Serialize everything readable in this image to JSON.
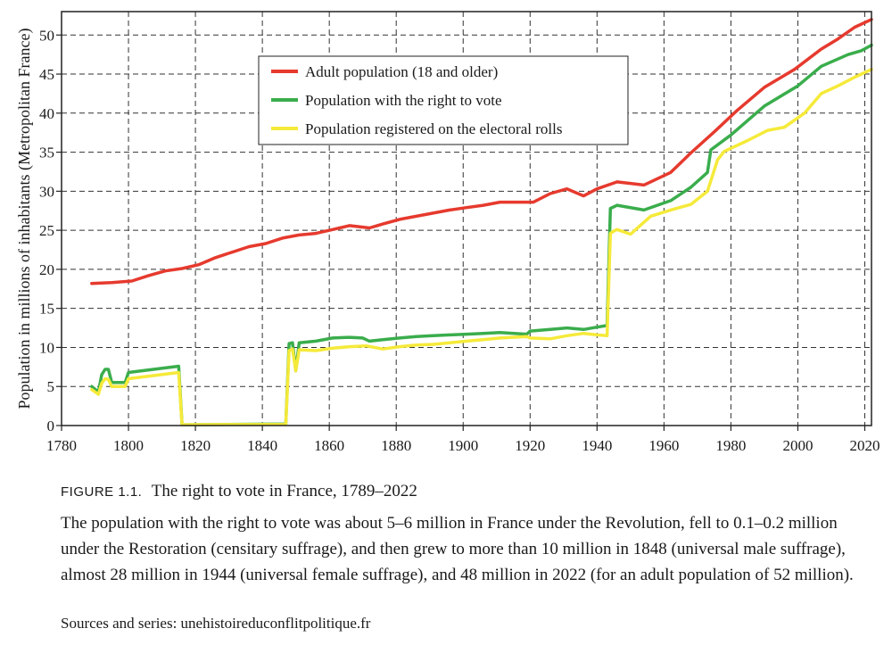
{
  "caption": {
    "figure_number": "FIGURE 1.1.",
    "figure_title": "The right to vote in France, 1789–2022",
    "description": "The population with the right to vote was about 5–6 million in France under the Revolution, fell to 0.1–0.2 million under the Restoration (censitary suffrage), and then grew to more than 10 million in 1848 (universal male suffrage), almost 28 million in 1944 (universal female suffrage), and 48 million in 2022 (for an adult population of 52 million).",
    "sources": "Sources and series: unehistoireduconflitpolitique.fr"
  },
  "chart_data": {
    "type": "line",
    "title": "",
    "xlabel": "",
    "ylabel": "Population in millions of inhabitants (Metropolitan France)",
    "xlim": [
      1780,
      2022
    ],
    "ylim": [
      0,
      53
    ],
    "x_ticks": [
      1780,
      1800,
      1820,
      1840,
      1860,
      1880,
      1900,
      1920,
      1940,
      1960,
      1980,
      2000,
      2020
    ],
    "y_ticks": [
      0,
      5,
      10,
      15,
      20,
      25,
      30,
      35,
      40,
      45,
      50
    ],
    "grid": true,
    "legend_position": "top-center",
    "series": [
      {
        "name": "Adult population (18 and older)",
        "color": "#e63a2e",
        "points": [
          [
            1789,
            18.2
          ],
          [
            1795,
            18.3
          ],
          [
            1801,
            18.5
          ],
          [
            1806,
            19.2
          ],
          [
            1811,
            19.8
          ],
          [
            1816,
            20.1
          ],
          [
            1821,
            20.6
          ],
          [
            1826,
            21.5
          ],
          [
            1831,
            22.2
          ],
          [
            1836,
            22.9
          ],
          [
            1841,
            23.3
          ],
          [
            1846,
            24.0
          ],
          [
            1851,
            24.4
          ],
          [
            1856,
            24.6
          ],
          [
            1861,
            25.1
          ],
          [
            1866,
            25.6
          ],
          [
            1872,
            25.3
          ],
          [
            1876,
            25.8
          ],
          [
            1881,
            26.4
          ],
          [
            1886,
            26.8
          ],
          [
            1891,
            27.2
          ],
          [
            1896,
            27.6
          ],
          [
            1901,
            27.9
          ],
          [
            1906,
            28.2
          ],
          [
            1911,
            28.6
          ],
          [
            1916,
            28.6
          ],
          [
            1921,
            28.6
          ],
          [
            1926,
            29.7
          ],
          [
            1931,
            30.3
          ],
          [
            1936,
            29.4
          ],
          [
            1940,
            30.3
          ],
          [
            1946,
            31.2
          ],
          [
            1954,
            30.8
          ],
          [
            1962,
            32.4
          ],
          [
            1968,
            34.9
          ],
          [
            1975,
            37.6
          ],
          [
            1982,
            40.4
          ],
          [
            1990,
            43.3
          ],
          [
            1999,
            45.6
          ],
          [
            2007,
            48.2
          ],
          [
            2012,
            49.5
          ],
          [
            2017,
            51.0
          ],
          [
            2022,
            52.0
          ]
        ]
      },
      {
        "name": "Population with the right to vote",
        "color": "#3aad4c",
        "points": [
          [
            1789,
            5.0
          ],
          [
            1791,
            4.3
          ],
          [
            1792,
            6.5
          ],
          [
            1793,
            7.2
          ],
          [
            1794,
            7.2
          ],
          [
            1795,
            5.5
          ],
          [
            1799,
            5.5
          ],
          [
            1800,
            6.8
          ],
          [
            1815,
            7.6
          ],
          [
            1816,
            0.1
          ],
          [
            1847,
            0.2
          ],
          [
            1848,
            10.5
          ],
          [
            1849,
            10.6
          ],
          [
            1850,
            7.0
          ],
          [
            1851,
            10.6
          ],
          [
            1856,
            10.8
          ],
          [
            1861,
            11.2
          ],
          [
            1866,
            11.3
          ],
          [
            1870,
            11.2
          ],
          [
            1872,
            10.8
          ],
          [
            1876,
            11.0
          ],
          [
            1881,
            11.2
          ],
          [
            1886,
            11.4
          ],
          [
            1891,
            11.5
          ],
          [
            1896,
            11.6
          ],
          [
            1901,
            11.7
          ],
          [
            1906,
            11.8
          ],
          [
            1911,
            11.9
          ],
          [
            1919,
            11.7
          ],
          [
            1920,
            12.1
          ],
          [
            1926,
            12.3
          ],
          [
            1931,
            12.5
          ],
          [
            1936,
            12.3
          ],
          [
            1940,
            12.6
          ],
          [
            1943,
            12.8
          ],
          [
            1944,
            27.8
          ],
          [
            1945,
            28.0
          ],
          [
            1946,
            28.2
          ],
          [
            1954,
            27.6
          ],
          [
            1962,
            28.8
          ],
          [
            1968,
            30.5
          ],
          [
            1973,
            32.4
          ],
          [
            1974,
            35.3
          ],
          [
            1980,
            37.2
          ],
          [
            1990,
            40.9
          ],
          [
            2000,
            43.5
          ],
          [
            2007,
            46.0
          ],
          [
            2015,
            47.5
          ],
          [
            2019,
            48.0
          ],
          [
            2022,
            48.7
          ]
        ]
      },
      {
        "name": "Population registered on the electoral rolls",
        "color": "#f5ea3a",
        "points": [
          [
            1789,
            4.6
          ],
          [
            1791,
            4.0
          ],
          [
            1792,
            5.4
          ],
          [
            1793,
            6.0
          ],
          [
            1794,
            5.9
          ],
          [
            1795,
            5.0
          ],
          [
            1799,
            5.0
          ],
          [
            1800,
            6.0
          ],
          [
            1815,
            6.8
          ],
          [
            1816,
            0.1
          ],
          [
            1847,
            0.15
          ],
          [
            1848,
            9.6
          ],
          [
            1849,
            9.8
          ],
          [
            1850,
            7.0
          ],
          [
            1851,
            9.7
          ],
          [
            1856,
            9.6
          ],
          [
            1861,
            9.9
          ],
          [
            1866,
            10.1
          ],
          [
            1871,
            10.2
          ],
          [
            1876,
            9.8
          ],
          [
            1881,
            10.1
          ],
          [
            1886,
            10.3
          ],
          [
            1891,
            10.4
          ],
          [
            1896,
            10.6
          ],
          [
            1901,
            10.8
          ],
          [
            1906,
            11.0
          ],
          [
            1911,
            11.2
          ],
          [
            1919,
            11.4
          ],
          [
            1920,
            11.2
          ],
          [
            1926,
            11.1
          ],
          [
            1931,
            11.5
          ],
          [
            1936,
            11.8
          ],
          [
            1940,
            11.6
          ],
          [
            1943,
            11.5
          ],
          [
            1944,
            24.6
          ],
          [
            1945,
            24.9
          ],
          [
            1946,
            25.1
          ],
          [
            1950,
            24.5
          ],
          [
            1956,
            26.8
          ],
          [
            1962,
            27.6
          ],
          [
            1968,
            28.3
          ],
          [
            1973,
            30.0
          ],
          [
            1976,
            34.0
          ],
          [
            1978,
            35.1
          ],
          [
            1985,
            36.5
          ],
          [
            1991,
            37.8
          ],
          [
            1996,
            38.2
          ],
          [
            2002,
            40.0
          ],
          [
            2007,
            42.5
          ],
          [
            2012,
            43.5
          ],
          [
            2017,
            44.6
          ],
          [
            2022,
            45.6
          ]
        ]
      }
    ]
  }
}
